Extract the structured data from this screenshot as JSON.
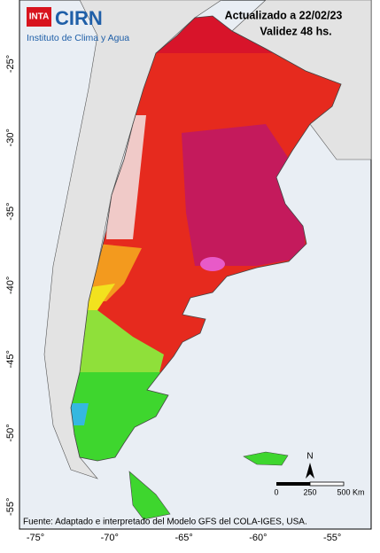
{
  "header": {
    "logo_left": "INTA",
    "logo_right": "CIRN",
    "institute": "Instituto de Clima y Agua",
    "updated": "Actualizado a 22/02/23",
    "validity": "Validez 48 hs."
  },
  "map": {
    "lat_labels": [
      "-25°",
      "-30°",
      "-35°",
      "-40°",
      "-45°",
      "-50°",
      "-55°"
    ],
    "lon_labels": [
      "-75°",
      "-70°",
      "-65°",
      "-60°",
      "-55°"
    ],
    "north": "N",
    "scale_labels": [
      "0",
      "250",
      "500 Km"
    ],
    "source": "Fuente: Adaptado e interpretado del Modelo GFS del COLA-IGES, USA."
  }
}
